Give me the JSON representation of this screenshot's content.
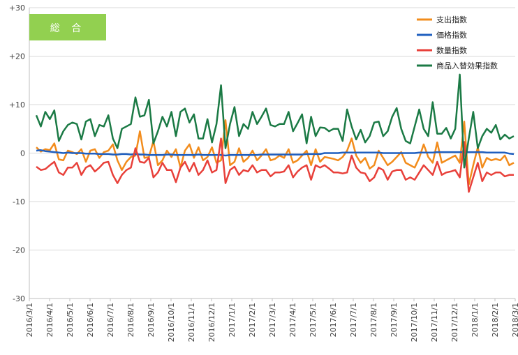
{
  "chart_data": {
    "type": "line",
    "title_badge": "総 合",
    "badge_color": "#92d050",
    "xlabel": "",
    "ylabel": "",
    "ylim": [
      -30,
      30
    ],
    "y_ticks": [
      30,
      20,
      10,
      0,
      -10,
      -20,
      -30
    ],
    "y_tick_labels": [
      "+30",
      "+20",
      "+10",
      "0",
      "-10",
      "-20",
      "-30"
    ],
    "grid": "horizontal",
    "legend_position": "top-right",
    "x_tick_labels": [
      "2016/3/1",
      "2016/4/1",
      "2016/5/1",
      "2016/6/1",
      "2016/7/1",
      "2016/8/1",
      "2016/9/1",
      "2016/10/1",
      "2016/11/1",
      "2016/12/1",
      "2017/1/1",
      "2017/2/1",
      "2017/3/1",
      "2017/4/1",
      "2017/5/1",
      "2017/6/1",
      "2017/7/1",
      "2017/8/1",
      "2017/9/1",
      "2017/10/1",
      "2017/11/1",
      "2017/12/1",
      "2018/1/1",
      "2018/2/1",
      "2018/3/1"
    ],
    "series": [
      {
        "name": "支出指数",
        "color": "#f28c1c",
        "values": [
          1.2,
          0.3,
          0.8,
          0.6,
          2.0,
          -1.3,
          -1.5,
          0.5,
          0.2,
          -0.2,
          0.8,
          -1.8,
          0.5,
          0.8,
          -1.0,
          0.2,
          0.5,
          1.8,
          -1.5,
          -3.5,
          -1.8,
          -0.8,
          -0.5,
          4.5,
          -1.0,
          -0.8,
          2.5,
          -2.5,
          -1.5,
          0.5,
          -0.8,
          0.8,
          -3.0,
          0.5,
          1.8,
          -1.0,
          1.2,
          -1.5,
          -0.8,
          1.2,
          -2.0,
          -1.5,
          6.8,
          -2.5,
          -1.8,
          1.0,
          -1.8,
          -1.0,
          0.5,
          -1.5,
          -0.5,
          0.8,
          -1.5,
          -1.2,
          -0.5,
          -1.0,
          0.8,
          -2.0,
          -1.5,
          -0.5,
          0.5,
          -2.5,
          0.8,
          -1.8,
          -0.8,
          -1.0,
          -1.2,
          -1.5,
          -0.8,
          0.5,
          3.0,
          -0.5,
          -2.0,
          -1.0,
          -3.2,
          -2.5,
          0.5,
          -1.0,
          -2.5,
          -1.8,
          -0.8,
          0.2,
          -2.0,
          -2.5,
          -3.0,
          -1.0,
          1.8,
          -0.8,
          -2.0,
          2.2,
          -2.0,
          -1.5,
          -1.0,
          -0.5,
          -2.0,
          6.5,
          -6.5,
          -2.5,
          1.2,
          -3.0,
          -1.0,
          -1.5,
          -1.2,
          -1.5,
          -0.5,
          -2.5,
          -2.0
        ],
        "label": "支出指数"
      },
      {
        "name": "価格指数",
        "color": "#1f5fbf",
        "values": [
          0.5,
          0.6,
          0.4,
          0.3,
          0.2,
          0.1,
          0.0,
          0.1,
          0.0,
          0.0,
          0.0,
          -0.1,
          -0.1,
          -0.1,
          -0.2,
          -0.2,
          -0.2,
          -0.3,
          -0.3,
          -0.2,
          -0.2,
          -0.3,
          -0.2,
          -0.3,
          -0.3,
          -0.4,
          -0.4,
          -0.4,
          -0.4,
          -0.3,
          -0.3,
          -0.4,
          -0.4,
          -0.4,
          -0.4,
          -0.4,
          -0.3,
          -0.4,
          -0.4,
          -0.4,
          -0.4,
          -0.4,
          -0.5,
          -0.4,
          -0.4,
          -0.4,
          -0.4,
          -0.4,
          -0.4,
          -0.4,
          -0.3,
          -0.3,
          -0.3,
          -0.3,
          -0.3,
          -0.3,
          -0.3,
          -0.3,
          -0.3,
          -0.3,
          -0.2,
          -0.2,
          -0.2,
          -0.2,
          0.0,
          0.0,
          0.0,
          0.0,
          0.1,
          0.1,
          0.1,
          0.1,
          0.1,
          0.1,
          0.1,
          0.1,
          0.1,
          0.0,
          0.0,
          0.0,
          0.0,
          0.0,
          0.0,
          0.0,
          0.0,
          0.1,
          0.1,
          0.1,
          0.1,
          0.2,
          0.2,
          0.2,
          0.2,
          0.2,
          0.2,
          0.2,
          0.2,
          0.2,
          0.2,
          0.2,
          0.1,
          0.1,
          0.1,
          0.1,
          0.1,
          -0.1,
          -0.2
        ],
        "label": "価格指数"
      },
      {
        "name": "数量指数",
        "color": "#e8403a",
        "values": [
          -2.8,
          -3.5,
          -3.3,
          -2.5,
          -1.8,
          -4.0,
          -4.5,
          -3.0,
          -3.0,
          -2.0,
          -4.5,
          -3.0,
          -2.5,
          -3.8,
          -3.0,
          -2.0,
          -1.8,
          -4.5,
          -6.2,
          -4.5,
          -3.5,
          -3.0,
          1.0,
          -1.8,
          -2.0,
          -1.0,
          -5.0,
          -4.0,
          -2.0,
          -3.5,
          -3.5,
          -6.0,
          -3.0,
          -1.8,
          -3.8,
          -2.0,
          -4.5,
          -3.5,
          -1.5,
          -4.0,
          -3.5,
          3.0,
          -6.2,
          -3.5,
          -2.8,
          -4.5,
          -3.5,
          -3.8,
          -2.5,
          -4.0,
          -3.5,
          -3.5,
          -4.8,
          -4.0,
          -4.0,
          -3.8,
          -2.5,
          -5.0,
          -3.8,
          -3.0,
          -2.5,
          -5.5,
          -2.5,
          -3.0,
          -2.5,
          -3.2,
          -4.0,
          -4.0,
          -4.2,
          -4.0,
          -0.5,
          -3.0,
          -4.0,
          -4.2,
          -5.8,
          -5.0,
          -3.0,
          -3.5,
          -5.5,
          -3.8,
          -3.5,
          -3.5,
          -5.5,
          -5.0,
          -5.5,
          -4.0,
          -2.5,
          -3.5,
          -4.5,
          -1.8,
          -4.5,
          -4.0,
          -3.8,
          -3.5,
          -5.0,
          2.3,
          -8.0,
          -5.0,
          -2.0,
          -5.8,
          -4.0,
          -4.5,
          -4.0,
          -4.0,
          -4.8,
          -4.5,
          -4.5
        ],
        "label": "数量指数"
      },
      {
        "name": "商品入替効果指数",
        "color": "#1b7a45",
        "values": [
          7.8,
          5.5,
          8.5,
          7.0,
          8.8,
          2.5,
          4.5,
          5.8,
          6.3,
          6.0,
          2.8,
          6.5,
          7.0,
          3.5,
          5.8,
          5.5,
          7.8,
          3.0,
          1.0,
          5.0,
          5.5,
          6.0,
          11.5,
          7.5,
          7.8,
          11.0,
          2.0,
          4.5,
          7.5,
          5.5,
          8.5,
          3.5,
          8.5,
          9.2,
          6.3,
          8.0,
          3.0,
          3.0,
          7.0,
          2.2,
          6.0,
          14.0,
          1.0,
          6.0,
          9.5,
          3.5,
          6.0,
          5.0,
          8.5,
          6.0,
          7.5,
          9.2,
          5.8,
          5.5,
          6.0,
          6.0,
          8.5,
          4.5,
          6.2,
          8.0,
          2.0,
          7.5,
          3.5,
          5.3,
          5.2,
          4.5,
          5.0,
          5.0,
          2.5,
          9.0,
          5.5,
          2.8,
          4.8,
          2.2,
          3.5,
          6.3,
          6.5,
          3.5,
          4.5,
          7.5,
          9.3,
          5.0,
          2.5,
          2.0,
          5.5,
          9.0,
          5.0,
          3.5,
          10.5,
          4.0,
          4.0,
          5.2,
          3.0,
          5.0,
          16.2,
          -3.0,
          3.0,
          8.5,
          1.0,
          3.5,
          5.0,
          4.2,
          5.8,
          2.8,
          3.8,
          3.0,
          3.5
        ],
        "label": "商品入替効果指数"
      }
    ]
  }
}
